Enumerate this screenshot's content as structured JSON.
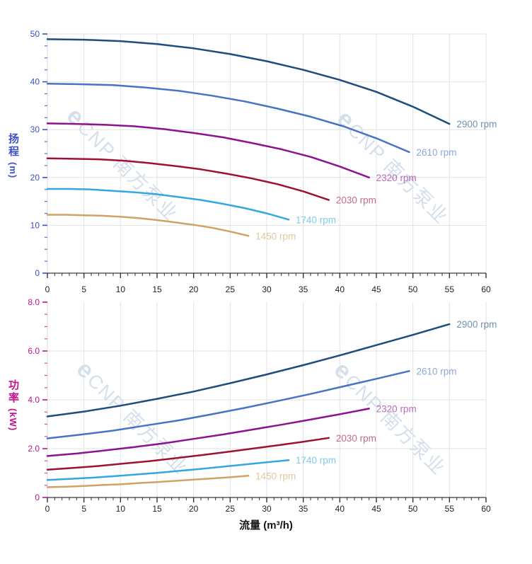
{
  "watermark": {
    "logo": "e",
    "text": "CNP 南方泵业",
    "color": "#b3c6dc"
  },
  "flow_axis": {
    "label": "流量 (m³/h)",
    "xlim": [
      0,
      60
    ],
    "xtick_vals": [
      0,
      5,
      10,
      15,
      20,
      25,
      30,
      35,
      40,
      45,
      50,
      55,
      60
    ],
    "xtick_labels": [
      "0",
      "5",
      "10",
      "15",
      "20",
      "25",
      "30",
      "35",
      "40",
      "45",
      "50",
      "55",
      "60"
    ],
    "xminor_step": 1,
    "xtick_color": "#222222"
  },
  "chart_data": [
    {
      "id": "head",
      "type": "line",
      "ylabel_cn": "扬程",
      "ylabel_unit": "(m)",
      "axis_color": "#3c50c8",
      "tick_color": "#5570d8",
      "ylim": [
        0,
        50
      ],
      "ytick_vals": [
        0,
        10,
        20,
        30,
        40,
        50
      ],
      "ytick_labels": [
        "0",
        "10",
        "20",
        "30",
        "40",
        "50"
      ],
      "ygrid_vals": [
        10,
        20,
        30,
        40,
        50
      ],
      "yminor_step": 2.5,
      "grid": true,
      "legend_position": "curve-end-labels",
      "series": [
        {
          "name": "2900 rpm",
          "color": "#1c4d7d",
          "points": [
            [
              0,
              48.9
            ],
            [
              5,
              48.8
            ],
            [
              10,
              48.5
            ],
            [
              15,
              47.9
            ],
            [
              20,
              47.0
            ],
            [
              25,
              45.8
            ],
            [
              30,
              44.3
            ],
            [
              35,
              42.5
            ],
            [
              40,
              40.4
            ],
            [
              45,
              37.9
            ],
            [
              50,
              34.8
            ],
            [
              55,
              31.2
            ]
          ]
        },
        {
          "name": "2610 rpm",
          "color": "#4673c5",
          "points": [
            [
              0,
              39.6
            ],
            [
              4.5,
              39.5
            ],
            [
              9,
              39.3
            ],
            [
              13.5,
              38.8
            ],
            [
              18,
              38.1
            ],
            [
              22.5,
              37.1
            ],
            [
              27,
              35.9
            ],
            [
              31.5,
              34.4
            ],
            [
              36,
              32.7
            ],
            [
              40.5,
              30.7
            ],
            [
              45,
              28.2
            ],
            [
              49.5,
              25.3
            ]
          ]
        },
        {
          "name": "2320 rpm",
          "color": "#8e1190",
          "points": [
            [
              0,
              31.3
            ],
            [
              4,
              31.2
            ],
            [
              8,
              31.0
            ],
            [
              12,
              30.7
            ],
            [
              16,
              30.1
            ],
            [
              20,
              29.3
            ],
            [
              24,
              28.4
            ],
            [
              28,
              27.2
            ],
            [
              32,
              25.9
            ],
            [
              36,
              24.3
            ],
            [
              40,
              22.3
            ],
            [
              44,
              20.0
            ]
          ]
        },
        {
          "name": "2030 rpm",
          "color": "#9e1132",
          "points": [
            [
              0,
              24.0
            ],
            [
              3.5,
              23.9
            ],
            [
              7,
              23.8
            ],
            [
              10.5,
              23.5
            ],
            [
              14,
              23.0
            ],
            [
              17.5,
              22.4
            ],
            [
              21,
              21.7
            ],
            [
              24.5,
              20.8
            ],
            [
              28,
              19.8
            ],
            [
              31.5,
              18.6
            ],
            [
              35,
              17.1
            ],
            [
              38.5,
              15.3
            ]
          ]
        },
        {
          "name": "1740 rpm",
          "color": "#33a7e0",
          "points": [
            [
              0,
              17.6
            ],
            [
              3,
              17.6
            ],
            [
              6,
              17.5
            ],
            [
              9,
              17.2
            ],
            [
              12,
              16.9
            ],
            [
              15,
              16.5
            ],
            [
              18,
              15.9
            ],
            [
              21,
              15.3
            ],
            [
              24,
              14.5
            ],
            [
              27,
              13.6
            ],
            [
              30,
              12.5
            ],
            [
              33,
              11.2
            ]
          ]
        },
        {
          "name": "1450 rpm",
          "color": "#d0a263",
          "points": [
            [
              0,
              12.2
            ],
            [
              2.5,
              12.2
            ],
            [
              5,
              12.1
            ],
            [
              7.5,
              12.0
            ],
            [
              10,
              11.8
            ],
            [
              12.5,
              11.5
            ],
            [
              15,
              11.1
            ],
            [
              17.5,
              10.6
            ],
            [
              20,
              10.1
            ],
            [
              22.5,
              9.5
            ],
            [
              25,
              8.7
            ],
            [
              27.5,
              7.8
            ]
          ]
        }
      ]
    },
    {
      "id": "power",
      "type": "line",
      "ylabel_cn": "功率",
      "ylabel_unit": "(kW)",
      "axis_color": "#c2128e",
      "tick_color": "#d54ba4",
      "ylim": [
        0,
        8
      ],
      "ytick_vals": [
        0,
        2,
        4,
        6,
        8
      ],
      "ytick_labels": [
        "0",
        "2.0",
        "4.0",
        "6.0",
        "8.0"
      ],
      "ygrid_vals": [
        2,
        4,
        6
      ],
      "yminor_step": 0.5,
      "grid": true,
      "legend_position": "curve-end-labels",
      "series": [
        {
          "name": "2900 rpm",
          "color": "#1c4d7d",
          "points": [
            [
              0,
              3.32
            ],
            [
              5,
              3.52
            ],
            [
              10,
              3.76
            ],
            [
              15,
              4.04
            ],
            [
              20,
              4.34
            ],
            [
              25,
              4.68
            ],
            [
              30,
              5.04
            ],
            [
              35,
              5.42
            ],
            [
              40,
              5.82
            ],
            [
              45,
              6.24
            ],
            [
              50,
              6.66
            ],
            [
              55,
              7.1
            ]
          ]
        },
        {
          "name": "2610 rpm",
          "color": "#4673c5",
          "points": [
            [
              0,
              2.42
            ],
            [
              4.5,
              2.57
            ],
            [
              9,
              2.74
            ],
            [
              13.5,
              2.95
            ],
            [
              18,
              3.16
            ],
            [
              22.5,
              3.41
            ],
            [
              27,
              3.67
            ],
            [
              31.5,
              3.95
            ],
            [
              36,
              4.24
            ],
            [
              40.5,
              4.55
            ],
            [
              45,
              4.86
            ],
            [
              49.5,
              5.18
            ]
          ]
        },
        {
          "name": "2320 rpm",
          "color": "#8e1190",
          "points": [
            [
              0,
              1.7
            ],
            [
              4,
              1.8
            ],
            [
              8,
              1.93
            ],
            [
              12,
              2.07
            ],
            [
              16,
              2.22
            ],
            [
              20,
              2.4
            ],
            [
              24,
              2.58
            ],
            [
              28,
              2.78
            ],
            [
              32,
              2.98
            ],
            [
              36,
              3.19
            ],
            [
              40,
              3.41
            ],
            [
              44,
              3.64
            ]
          ]
        },
        {
          "name": "2030 rpm",
          "color": "#9e1132",
          "points": [
            [
              0,
              1.14
            ],
            [
              3.5,
              1.21
            ],
            [
              7,
              1.29
            ],
            [
              10.5,
              1.39
            ],
            [
              14,
              1.49
            ],
            [
              17.5,
              1.61
            ],
            [
              21,
              1.73
            ],
            [
              24.5,
              1.86
            ],
            [
              28,
              2.0
            ],
            [
              31.5,
              2.14
            ],
            [
              35,
              2.28
            ],
            [
              38.5,
              2.44
            ]
          ]
        },
        {
          "name": "1740 rpm",
          "color": "#33a7e0",
          "points": [
            [
              0,
              0.72
            ],
            [
              3,
              0.76
            ],
            [
              6,
              0.81
            ],
            [
              9,
              0.87
            ],
            [
              12,
              0.94
            ],
            [
              15,
              1.01
            ],
            [
              18,
              1.09
            ],
            [
              21,
              1.17
            ],
            [
              24,
              1.26
            ],
            [
              27,
              1.35
            ],
            [
              30,
              1.44
            ],
            [
              33,
              1.53
            ]
          ]
        },
        {
          "name": "1450 rpm",
          "color": "#d0a263",
          "points": [
            [
              0,
              0.42
            ],
            [
              2.5,
              0.44
            ],
            [
              5,
              0.47
            ],
            [
              7.5,
              0.51
            ],
            [
              10,
              0.54
            ],
            [
              12.5,
              0.59
            ],
            [
              15,
              0.63
            ],
            [
              17.5,
              0.68
            ],
            [
              20,
              0.73
            ],
            [
              22.5,
              0.78
            ],
            [
              25,
              0.83
            ],
            [
              27.5,
              0.89
            ]
          ]
        }
      ]
    }
  ]
}
